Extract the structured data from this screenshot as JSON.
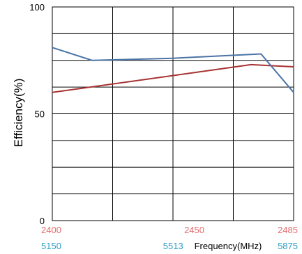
{
  "chart_data": {
    "type": "line",
    "title": "",
    "ylabel": "Efficiency(%)",
    "xlabel": "Frequency(MHz)",
    "ylim": [
      0,
      100
    ],
    "y_ticks": [
      "0",
      "50",
      "100"
    ],
    "x_axis_24g": {
      "ticks": [
        "2400",
        "2450",
        "2485"
      ],
      "range": [
        2400,
        2485
      ],
      "color": "#e46c6c"
    },
    "x_axis_5g": {
      "ticks": [
        "5150",
        "5513",
        "5875"
      ],
      "range": [
        5150,
        5875
      ],
      "color": "#2f9ec2"
    },
    "grid": true,
    "series": [
      {
        "axis": "x_axis_24g",
        "color": "#a83232",
        "x": [
          2400,
          2470,
          2485
        ],
        "y": [
          60,
          73,
          72
        ]
      },
      {
        "axis": "x_axis_5g",
        "color": "#4a73a6",
        "x": [
          5150,
          5270,
          5513,
          5777,
          5875
        ],
        "y": [
          81,
          75,
          76,
          78,
          60
        ]
      }
    ]
  }
}
